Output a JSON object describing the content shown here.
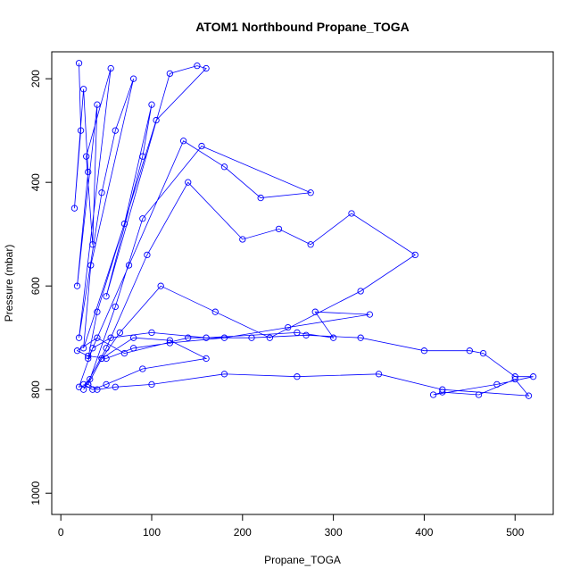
{
  "chart_data": {
    "type": "line",
    "title": "ATOM1 Northbound Propane_TOGA",
    "x_label": "Propane_TOGA",
    "y_label": "Pressure (mbar)",
    "x": [
      20,
      22,
      15,
      25,
      30,
      18,
      40,
      35,
      28,
      55,
      20,
      45,
      60,
      80,
      33,
      25,
      70,
      100,
      90,
      50,
      120,
      150,
      160,
      105,
      40,
      30,
      75,
      135,
      180,
      220,
      275,
      155,
      90,
      60,
      32,
      25,
      50,
      95,
      140,
      200,
      240,
      275,
      320,
      390,
      330,
      230,
      170,
      110,
      65,
      45,
      30,
      20,
      35,
      55,
      100,
      160,
      260,
      300,
      280,
      340,
      250,
      180,
      120,
      80,
      50,
      30,
      18,
      40,
      70,
      140,
      210,
      270,
      330,
      400,
      450,
      465,
      500,
      520,
      480,
      410,
      420,
      460,
      500,
      515,
      420,
      350,
      260,
      180,
      100,
      60,
      40,
      30,
      45,
      80,
      120,
      160,
      90,
      50,
      35,
      25
    ],
    "series": [
      {
        "name": "Propane_TOGA",
        "color": "#0000ff",
        "values": [
          170,
          300,
          450,
          220,
          380,
          600,
          250,
          520,
          350,
          180,
          700,
          420,
          300,
          200,
          560,
          720,
          480,
          250,
          350,
          620,
          190,
          175,
          180,
          280,
          650,
          740,
          560,
          320,
          370,
          430,
          420,
          330,
          470,
          640,
          780,
          800,
          720,
          540,
          400,
          510,
          490,
          520,
          460,
          540,
          610,
          700,
          650,
          600,
          690,
          740,
          790,
          795,
          720,
          700,
          690,
          700,
          690,
          700,
          650,
          655,
          680,
          700,
          710,
          720,
          740,
          735,
          725,
          700,
          730,
          700,
          700,
          695,
          700,
          725,
          725,
          730,
          775,
          775,
          790,
          810,
          805,
          810,
          780,
          812,
          800,
          770,
          775,
          770,
          790,
          795,
          800,
          790,
          740,
          700,
          705,
          740,
          760,
          790,
          800,
          790
        ]
      }
    ],
    "xlim": [
      -10,
      542
    ],
    "ylim": [
      148,
      1041
    ],
    "y_reversed": true,
    "xticks": [
      0,
      100,
      200,
      300,
      400,
      500
    ],
    "yticks": [
      200,
      400,
      600,
      800,
      1000
    ],
    "markers": "open-circle"
  }
}
